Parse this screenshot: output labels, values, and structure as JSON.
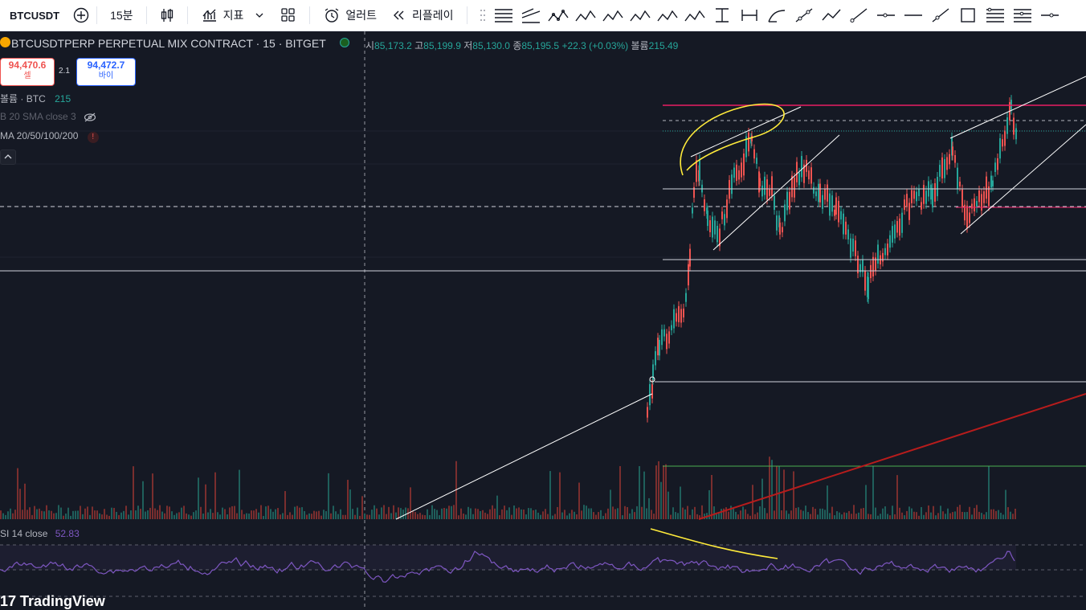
{
  "toolbar": {
    "symbol": "BTCUSDT",
    "interval": "15분",
    "indicators_label": "지표",
    "alert_label": "얼러트",
    "replay_label": "리플레이"
  },
  "legend": {
    "title": "BTCUSDTPERP PERPETUAL MIX CONTRACT · 15 · BITGET",
    "open_label": "시",
    "open": "85,173.2",
    "high_label": "고",
    "high": "85,199.9",
    "low_label": "저",
    "low": "85,130.0",
    "close_label": "종",
    "close": "85,195.5",
    "change": "+22.3 (+0.03%)",
    "volume_label": "볼륨",
    "volume": "215.49"
  },
  "trade": {
    "sell_price": "94,470.6",
    "sell_label": "셀",
    "spread": "2.1",
    "buy_price": "94,472.7",
    "buy_label": "바이"
  },
  "indicators": {
    "volume_label": "볼륨 · BTC",
    "volume_value": "215",
    "bb_label": "B 20 SMA close 3",
    "ma_label": "MA 20/50/100/200",
    "rsi_label": "SI 14 close",
    "rsi_value": "52.83"
  },
  "watermark": "17 TradingView",
  "colors": {
    "background": "#151924",
    "toolbar": "#ffffff",
    "up": "#26a69a",
    "down": "#ef5350",
    "rsi": "#7e57c2",
    "annotation": "#ffeb3b",
    "resistance": "#e91e63",
    "trend_red": "#b71c1c"
  }
}
